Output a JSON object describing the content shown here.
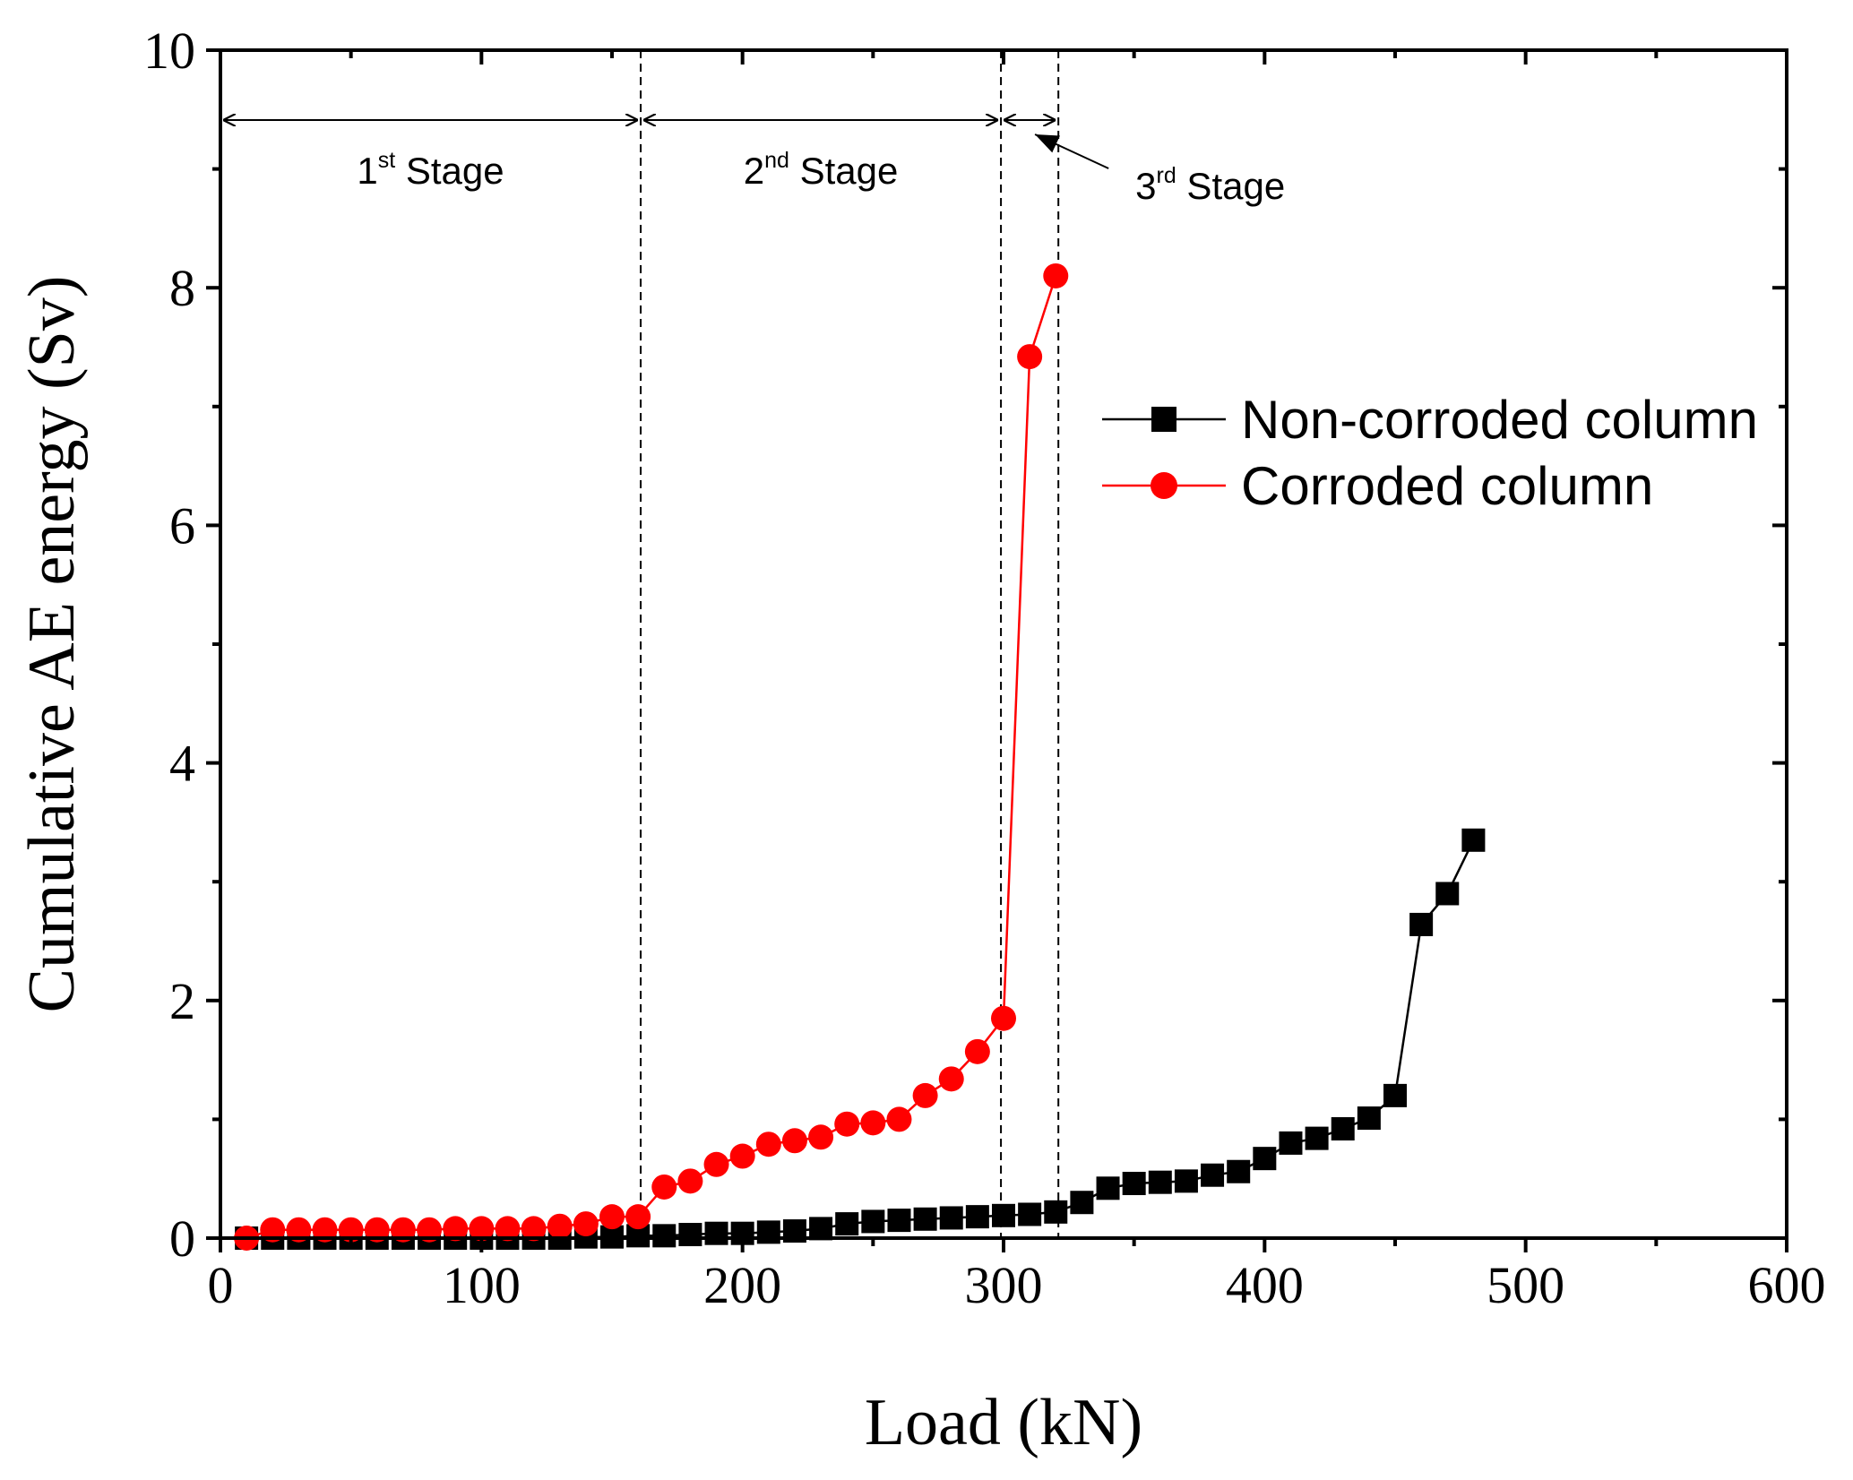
{
  "chart_data": {
    "type": "line",
    "xlabel": "Load (kN)",
    "ylabel": "Cumulative AE energy (Sv)",
    "xlim": [
      0,
      600
    ],
    "ylim": [
      0,
      10
    ],
    "xticks": [
      "0",
      "100",
      "200",
      "300",
      "400",
      "500",
      "600"
    ],
    "yticks": [
      "0",
      "2",
      "4",
      "6",
      "8",
      "10"
    ],
    "grid": false,
    "legend_position": "upper-right",
    "series": [
      {
        "name": "Non-corroded column",
        "color": "#000000",
        "marker": "square",
        "x": [
          10,
          20,
          30,
          40,
          50,
          60,
          70,
          80,
          90,
          100,
          110,
          120,
          130,
          140,
          150,
          160,
          170,
          180,
          190,
          200,
          210,
          220,
          230,
          240,
          250,
          260,
          270,
          280,
          290,
          300,
          310,
          320,
          330,
          340,
          350,
          360,
          370,
          380,
          390,
          400,
          410,
          420,
          430,
          440,
          450,
          460,
          470,
          480
        ],
        "y": [
          0.0,
          0.0,
          0.0,
          0.0,
          0.0,
          0.0,
          0.0,
          0.0,
          0.0,
          0.0,
          0.0,
          0.0,
          0.0,
          0.01,
          0.01,
          0.02,
          0.02,
          0.03,
          0.04,
          0.04,
          0.05,
          0.06,
          0.08,
          0.12,
          0.14,
          0.15,
          0.16,
          0.17,
          0.18,
          0.19,
          0.2,
          0.22,
          0.3,
          0.42,
          0.46,
          0.47,
          0.48,
          0.53,
          0.56,
          0.67,
          0.8,
          0.84,
          0.92,
          1.01,
          1.2,
          2.64,
          2.9,
          3.35
        ]
      },
      {
        "name": "Corroded column",
        "color": "#ff0000",
        "marker": "circle",
        "x": [
          10,
          20,
          30,
          40,
          50,
          60,
          70,
          80,
          90,
          100,
          110,
          120,
          130,
          140,
          150,
          160,
          170,
          180,
          190,
          200,
          210,
          220,
          230,
          240,
          250,
          260,
          270,
          280,
          290,
          300,
          310,
          320
        ],
        "y": [
          0.0,
          0.07,
          0.07,
          0.07,
          0.07,
          0.07,
          0.07,
          0.07,
          0.08,
          0.08,
          0.08,
          0.08,
          0.1,
          0.12,
          0.18,
          0.18,
          0.43,
          0.48,
          0.62,
          0.69,
          0.79,
          0.82,
          0.85,
          0.96,
          0.97,
          1.0,
          1.2,
          1.34,
          1.57,
          1.85,
          7.42,
          8.1
        ]
      }
    ],
    "annotations": {
      "stage_boundaries_kN": [
        161,
        299,
        321
      ],
      "stage1": {
        "main": "1",
        "sup": "st",
        "rest": " Stage"
      },
      "stage2": {
        "main": "2",
        "sup": "nd",
        "rest": " Stage"
      },
      "stage3": {
        "main": "3",
        "sup": "rd",
        "rest": " Stage"
      }
    }
  }
}
